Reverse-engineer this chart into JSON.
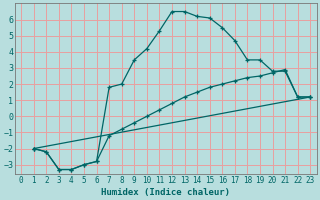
{
  "xlabel": "Humidex (Indice chaleur)",
  "background_color": "#b8dede",
  "grid_color": "#e8a0a0",
  "line_color": "#006666",
  "xlim": [
    -0.5,
    23.5
  ],
  "ylim": [
    -3.6,
    7.0
  ],
  "yticks": [
    -3,
    -2,
    -1,
    0,
    1,
    2,
    3,
    4,
    5,
    6
  ],
  "xticks": [
    0,
    1,
    2,
    3,
    4,
    5,
    6,
    7,
    8,
    9,
    10,
    11,
    12,
    13,
    14,
    15,
    16,
    17,
    18,
    19,
    20,
    21,
    22,
    23
  ],
  "line1_x": [
    1,
    2,
    3,
    4,
    5,
    6,
    7,
    8,
    9,
    10,
    11,
    12,
    13,
    14,
    15,
    16,
    17,
    18,
    19,
    20,
    21,
    22,
    23
  ],
  "line1_y": [
    -2.0,
    -2.2,
    -3.3,
    -3.3,
    -3.0,
    -2.8,
    1.8,
    2.0,
    3.5,
    4.2,
    5.3,
    6.5,
    6.5,
    6.2,
    6.1,
    5.5,
    4.7,
    3.5,
    3.5,
    2.8,
    2.8,
    1.2,
    1.2
  ],
  "line2_x": [
    1,
    2,
    3,
    4,
    5,
    6,
    7,
    8,
    9,
    10,
    11,
    12,
    13,
    14,
    15,
    16,
    17,
    18,
    19,
    20,
    21,
    22,
    23
  ],
  "line2_y": [
    -2.0,
    -2.2,
    -3.3,
    -3.3,
    -3.0,
    -2.8,
    -1.2,
    -0.8,
    -0.4,
    0.0,
    0.4,
    0.8,
    1.2,
    1.5,
    1.8,
    2.0,
    2.2,
    2.4,
    2.5,
    2.7,
    2.9,
    1.2,
    1.2
  ],
  "line3_x": [
    1,
    23
  ],
  "line3_y": [
    -2.0,
    1.2
  ]
}
